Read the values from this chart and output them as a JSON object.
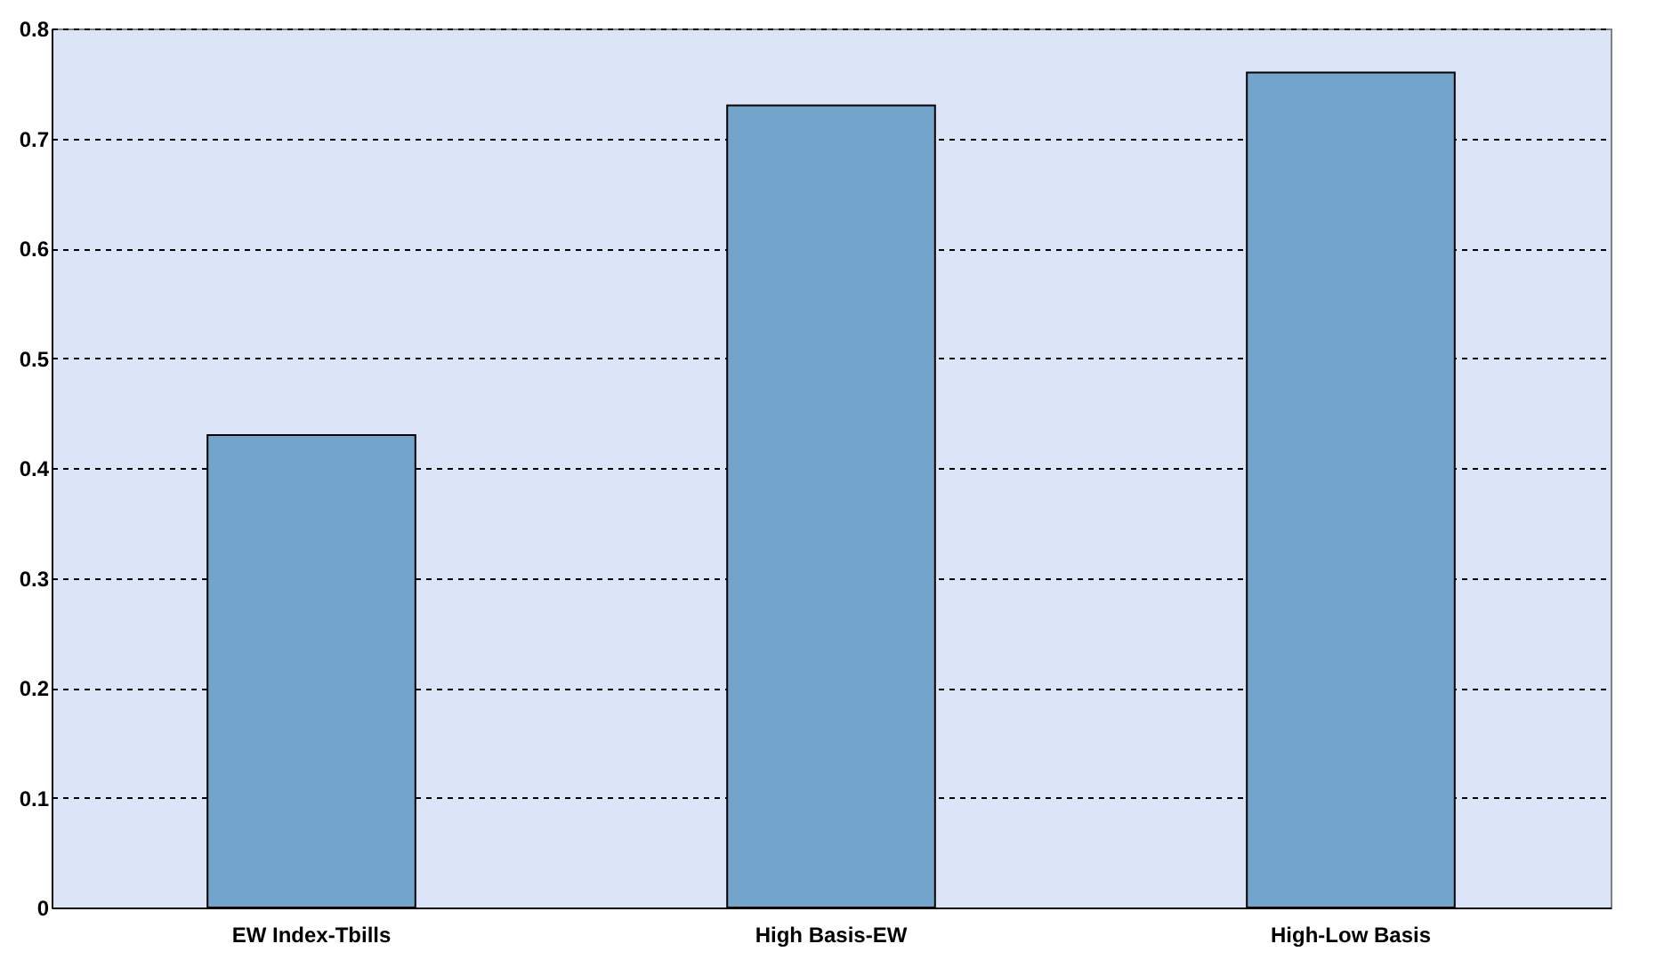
{
  "chart_data": {
    "type": "bar",
    "categories": [
      "EW Index-Tbills",
      "High Basis-EW",
      "High-Low Basis"
    ],
    "values": [
      0.43,
      0.73,
      0.76
    ],
    "color": "#73a5cc",
    "ylim": [
      0,
      0.8
    ],
    "yticks": [
      0,
      0.1,
      0.2,
      0.3,
      0.4,
      0.5,
      0.6,
      0.7,
      0.8
    ],
    "grid": "y"
  }
}
